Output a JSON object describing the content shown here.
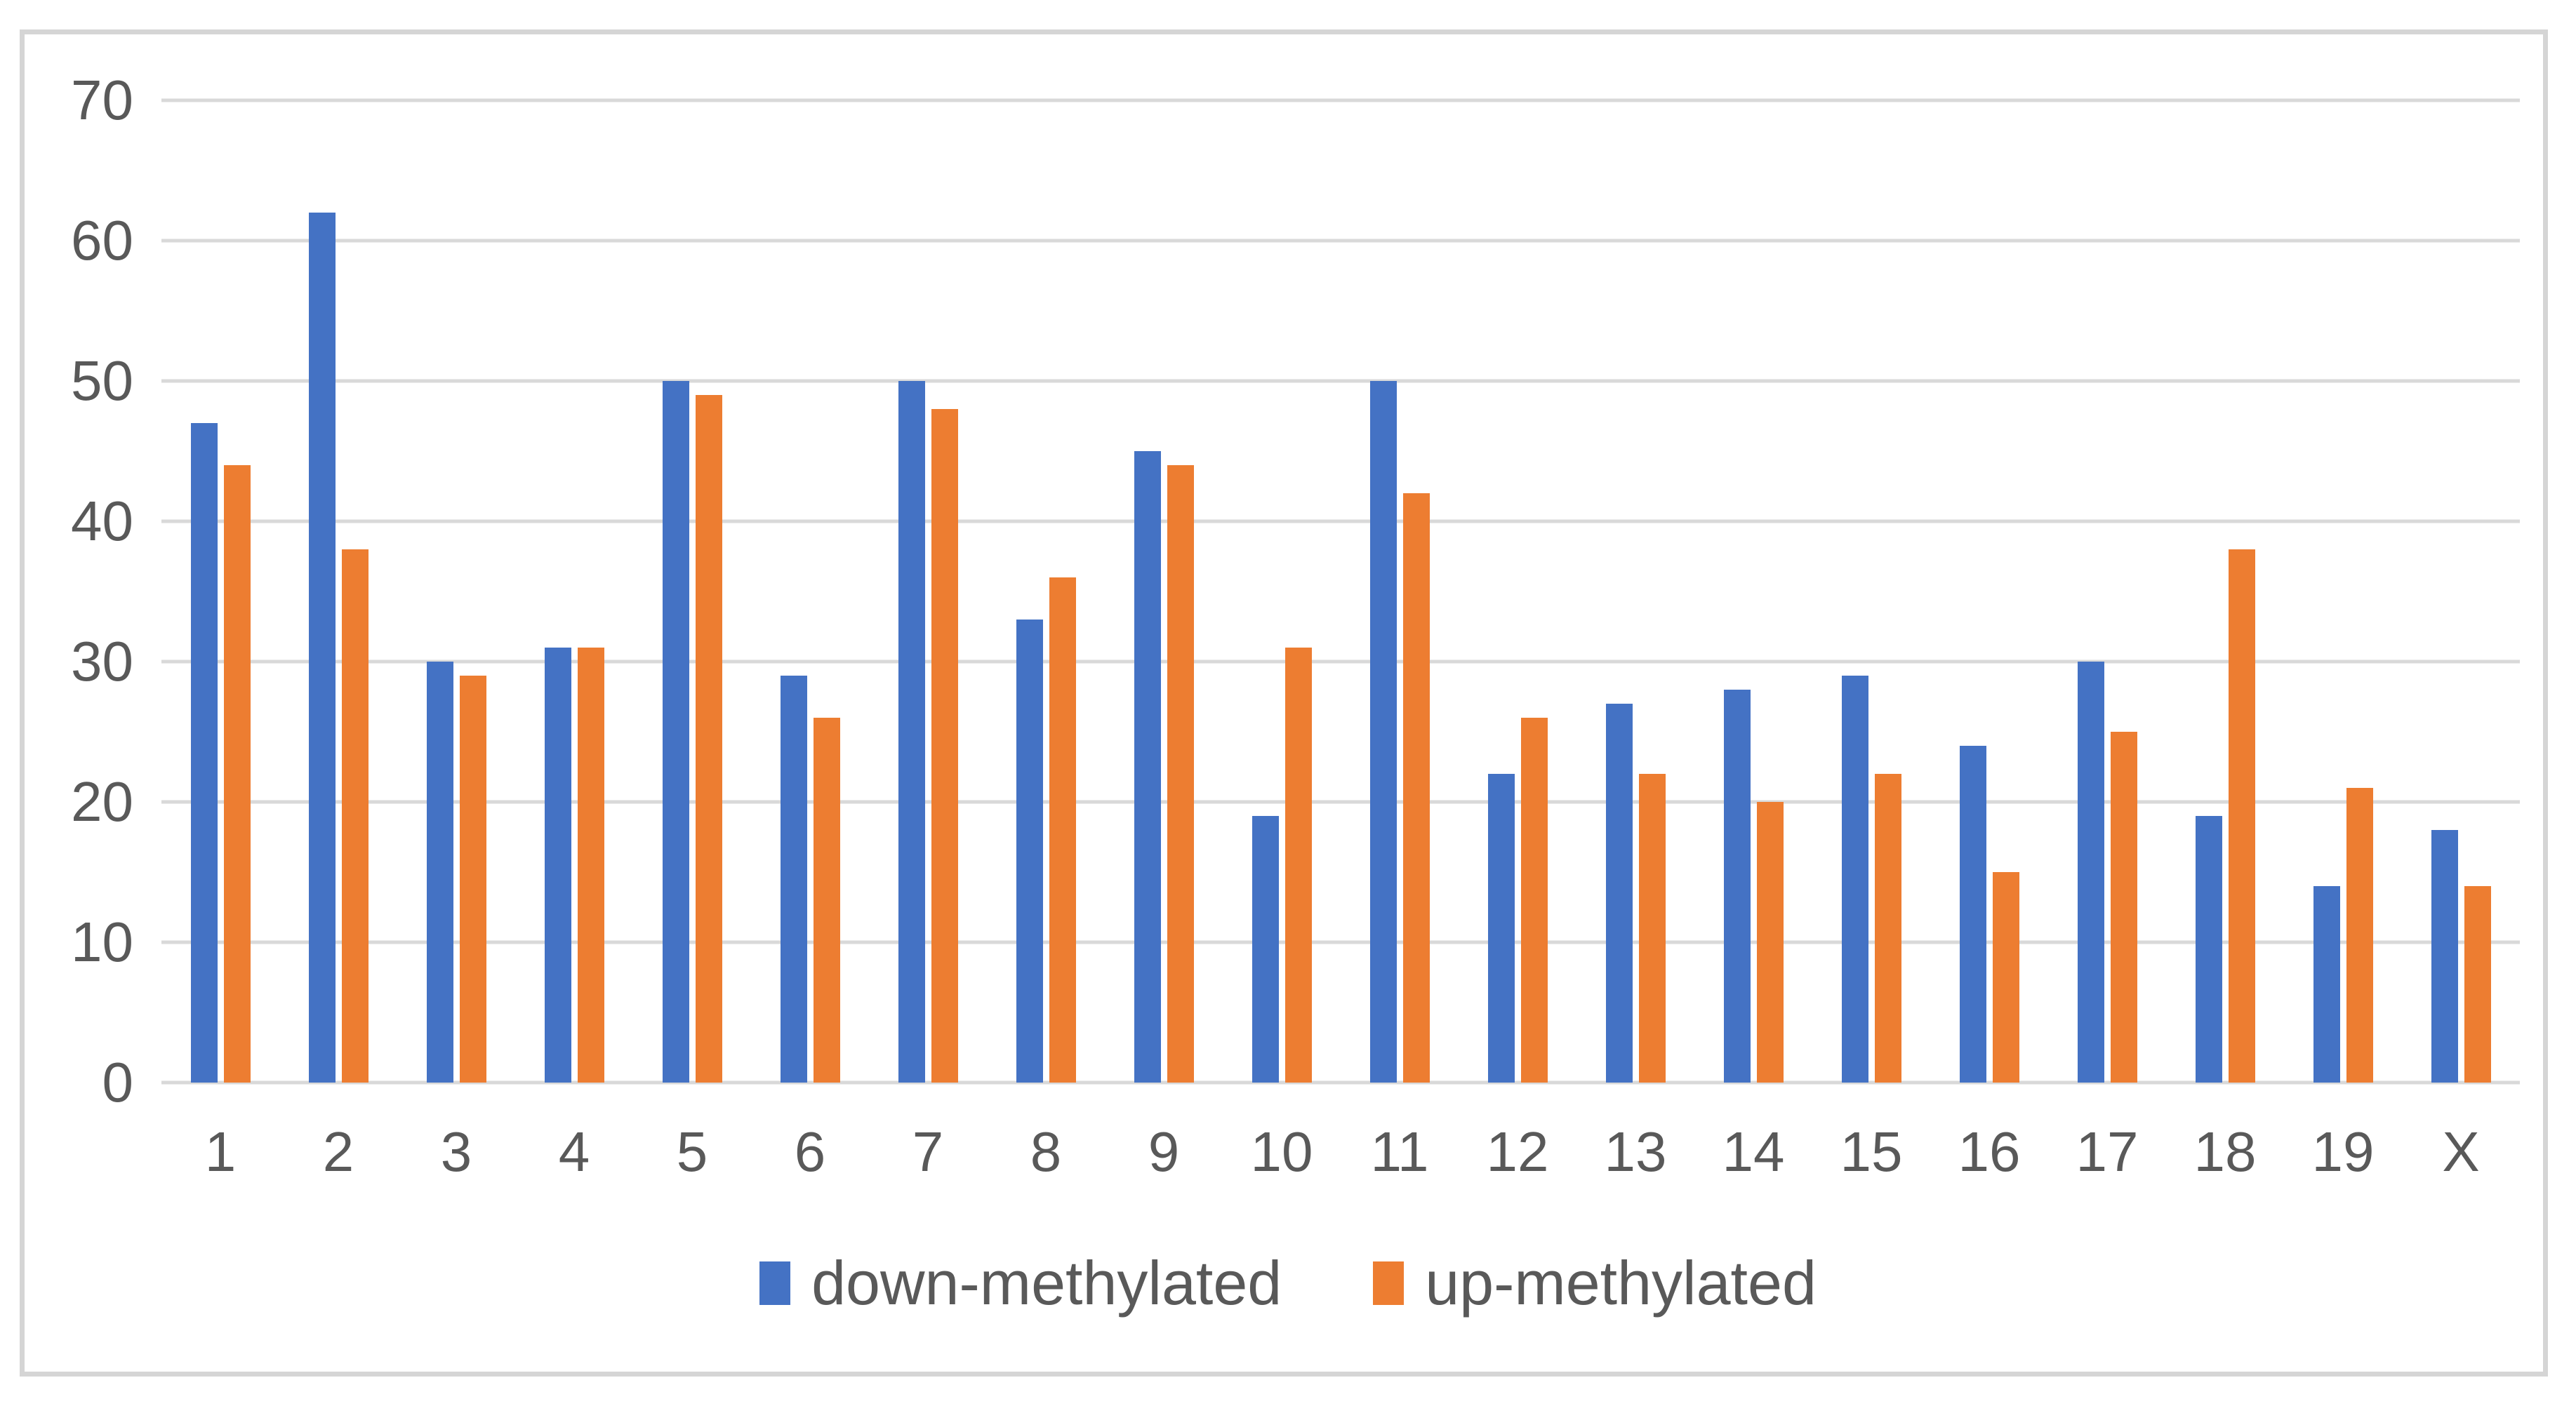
{
  "chart_data": {
    "type": "bar",
    "title": "",
    "xlabel": "",
    "ylabel": "",
    "categories": [
      "1",
      "2",
      "3",
      "4",
      "5",
      "6",
      "7",
      "8",
      "9",
      "10",
      "11",
      "12",
      "13",
      "14",
      "15",
      "16",
      "17",
      "18",
      "19",
      "X"
    ],
    "series": [
      {
        "name": "down-methylated",
        "color": "#4472C4",
        "values": [
          47,
          62,
          30,
          31,
          50,
          29,
          50,
          33,
          45,
          19,
          50,
          22,
          27,
          28,
          29,
          24,
          30,
          19,
          14,
          18
        ]
      },
      {
        "name": "up-methylated",
        "color": "#ED7D31",
        "values": [
          44,
          38,
          29,
          31,
          49,
          26,
          48,
          36,
          44,
          31,
          42,
          26,
          22,
          20,
          22,
          15,
          25,
          38,
          21,
          14
        ]
      }
    ],
    "ylim": [
      0,
      70
    ],
    "yticks": [
      70,
      60,
      50,
      40,
      30,
      20,
      10,
      0
    ],
    "grid": true,
    "legend_position": "bottom",
    "colors": {
      "gridline": "#D9D9D9",
      "axis_text": "#595959",
      "frame_border": "#D5D5D5",
      "background": "#FFFFFF"
    }
  }
}
